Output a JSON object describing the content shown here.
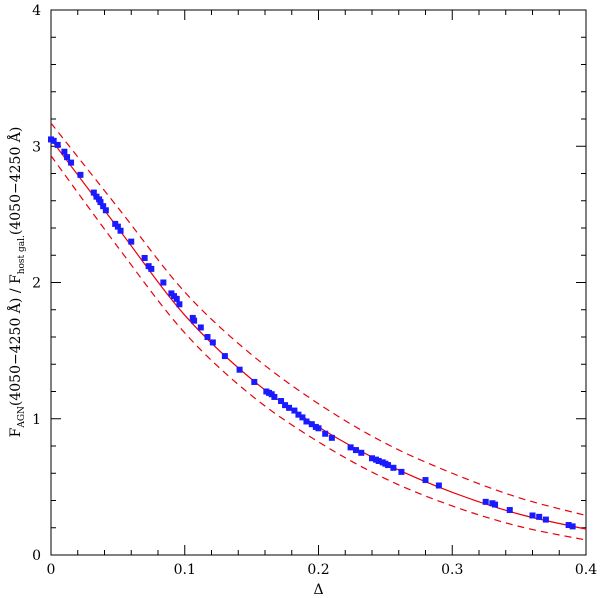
{
  "chart_data": {
    "type": "scatter",
    "xlabel": "Δ",
    "ylabel_parts": {
      "f1": "F",
      "sub1": "AGN",
      "mid": "(4050−4250  Å)  /  F",
      "sub2": "host gal.",
      "end": "(4050−4250  Å)"
    },
    "xlim": [
      0,
      0.4
    ],
    "ylim": [
      0,
      4
    ],
    "x_ticks": [
      0,
      0.1,
      0.2,
      0.3,
      0.4
    ],
    "x_tick_labels": [
      "0",
      "0.1",
      "0.2",
      "0.3",
      "0.4"
    ],
    "y_ticks": [
      0,
      1,
      2,
      3,
      4
    ],
    "y_tick_labels": [
      "0",
      "1",
      "2",
      "3",
      "4"
    ],
    "grid": false,
    "colors": {
      "points": "#1a1aff",
      "curves": "#e8000b",
      "axes": "#000000"
    },
    "points": {
      "x": [
        0.0,
        0.002,
        0.005,
        0.01,
        0.012,
        0.015,
        0.022,
        0.032,
        0.034,
        0.036,
        0.037,
        0.039,
        0.041,
        0.048,
        0.05,
        0.052,
        0.06,
        0.07,
        0.073,
        0.075,
        0.084,
        0.09,
        0.092,
        0.094,
        0.096,
        0.106,
        0.107,
        0.112,
        0.117,
        0.121,
        0.13,
        0.141,
        0.152,
        0.161,
        0.163,
        0.165,
        0.167,
        0.172,
        0.175,
        0.178,
        0.182,
        0.185,
        0.188,
        0.191,
        0.195,
        0.198,
        0.2,
        0.205,
        0.21,
        0.224,
        0.228,
        0.232,
        0.24,
        0.243,
        0.245,
        0.248,
        0.25,
        0.252,
        0.256,
        0.262,
        0.28,
        0.29,
        0.325,
        0.33,
        0.332,
        0.343,
        0.36,
        0.365,
        0.37,
        0.387,
        0.39
      ],
      "y": [
        3.05,
        3.04,
        3.01,
        2.96,
        2.92,
        2.88,
        2.79,
        2.66,
        2.63,
        2.61,
        2.59,
        2.56,
        2.53,
        2.43,
        2.41,
        2.38,
        2.3,
        2.18,
        2.12,
        2.1,
        2.0,
        1.92,
        1.9,
        1.88,
        1.84,
        1.74,
        1.72,
        1.67,
        1.6,
        1.56,
        1.46,
        1.36,
        1.27,
        1.2,
        1.19,
        1.18,
        1.16,
        1.13,
        1.1,
        1.08,
        1.06,
        1.03,
        1.01,
        0.98,
        0.96,
        0.94,
        0.93,
        0.89,
        0.86,
        0.79,
        0.77,
        0.75,
        0.71,
        0.7,
        0.69,
        0.68,
        0.67,
        0.66,
        0.64,
        0.61,
        0.55,
        0.51,
        0.39,
        0.38,
        0.37,
        0.33,
        0.29,
        0.28,
        0.26,
        0.22,
        0.21
      ]
    },
    "fit_curve": {
      "x": [
        0.0,
        0.05,
        0.1,
        0.15,
        0.2,
        0.25,
        0.3,
        0.35,
        0.4
      ],
      "y": [
        3.05,
        2.4,
        1.76,
        1.29,
        0.94,
        0.67,
        0.46,
        0.3,
        0.19
      ]
    },
    "upper_bound": {
      "x": [
        0.0,
        0.05,
        0.1,
        0.15,
        0.2,
        0.25,
        0.3,
        0.35,
        0.4
      ],
      "y": [
        3.17,
        2.55,
        1.93,
        1.47,
        1.11,
        0.82,
        0.6,
        0.42,
        0.29
      ]
    },
    "lower_bound": {
      "x": [
        0.0,
        0.05,
        0.1,
        0.15,
        0.2,
        0.25,
        0.3,
        0.35,
        0.4
      ],
      "y": [
        2.93,
        2.26,
        1.63,
        1.17,
        0.83,
        0.56,
        0.36,
        0.21,
        0.11
      ]
    }
  }
}
